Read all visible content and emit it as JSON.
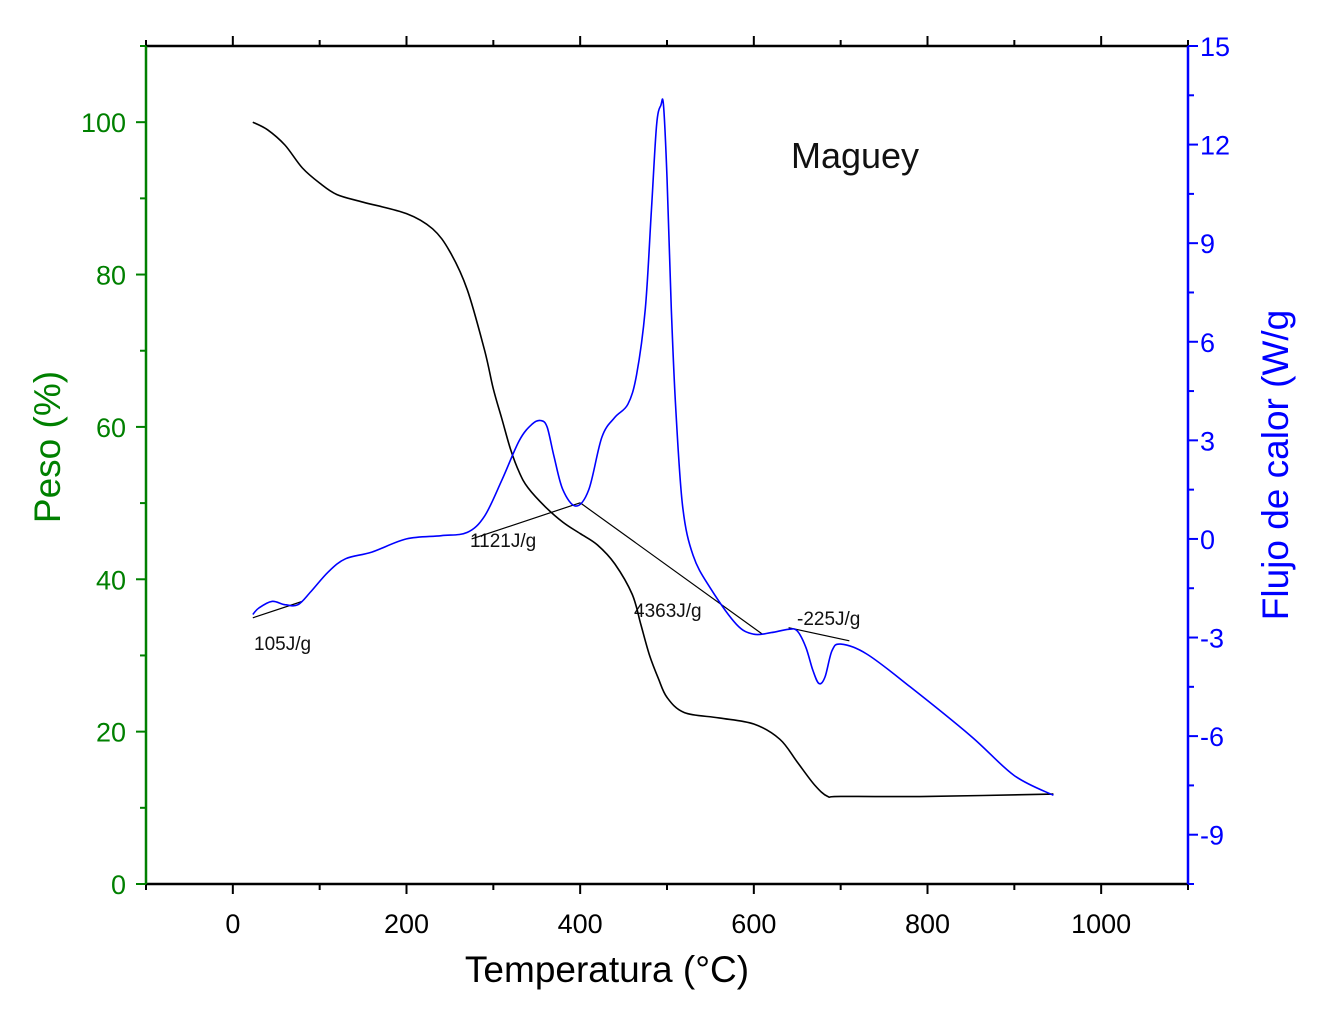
{
  "chart_data": {
    "type": "line",
    "title": "Maguey",
    "xlabel": "Temperatura (°C)",
    "ylabel_left": "Peso (%)",
    "ylabel_right": "Flujo de calor (W/g",
    "xlim": [
      -100,
      1100
    ],
    "ylim_left": [
      0,
      110
    ],
    "ylim_right": [
      -10.5,
      15
    ],
    "x_ticks": [
      0,
      200,
      400,
      600,
      800,
      1000
    ],
    "y_left_ticks": [
      0,
      20,
      40,
      60,
      80,
      100
    ],
    "y_right_ticks": [
      -9,
      -6,
      -3,
      0,
      3,
      6,
      9,
      12,
      15
    ],
    "grid": false,
    "colors": {
      "weight": "#000000",
      "heat_flow": "#0000ff",
      "left_axis": "#008000",
      "right_axis": "#0000ff"
    },
    "series": [
      {
        "key": "weight",
        "axis": "left",
        "x": [
          23,
          40,
          60,
          80,
          100,
          120,
          150,
          200,
          230,
          250,
          270,
          290,
          300,
          310,
          320,
          330,
          340,
          360,
          380,
          400,
          420,
          440,
          460,
          470,
          480,
          490,
          500,
          520,
          560,
          600,
          630,
          650,
          670,
          685,
          700,
          800,
          945
        ],
        "values": [
          100,
          99,
          97,
          94,
          92,
          90.5,
          89.5,
          88,
          86,
          83,
          78,
          70,
          65,
          61,
          57,
          54,
          52,
          49.5,
          47.5,
          46,
          44.5,
          42,
          38,
          34,
          30,
          27,
          24.5,
          22.5,
          21.8,
          21,
          19,
          16,
          13,
          11.5,
          11.5,
          11.5,
          11.8
        ]
      },
      {
        "key": "heat_flow",
        "axis": "right",
        "x": [
          23,
          30,
          45,
          60,
          75,
          90,
          110,
          130,
          160,
          200,
          240,
          270,
          290,
          310,
          330,
          345,
          355,
          362,
          370,
          380,
          395,
          410,
          425,
          440,
          455,
          465,
          475,
          482,
          488,
          493,
          496,
          500,
          505,
          510,
          518,
          530,
          550,
          580,
          600,
          620,
          640,
          650,
          660,
          668,
          675,
          682,
          690,
          700,
          730,
          780,
          850,
          900,
          945
        ],
        "values": [
          -2.3,
          -2.1,
          -1.9,
          -2.0,
          -2.0,
          -1.6,
          -1.0,
          -0.6,
          -0.4,
          0.0,
          0.1,
          0.2,
          0.7,
          1.8,
          3.0,
          3.5,
          3.6,
          3.4,
          2.5,
          1.5,
          1.0,
          1.5,
          3.1,
          3.7,
          4.1,
          5.0,
          7.0,
          10.0,
          12.6,
          13.2,
          13.2,
          11.0,
          7.0,
          4.0,
          1.0,
          -0.5,
          -1.5,
          -2.6,
          -2.9,
          -2.85,
          -2.75,
          -2.8,
          -3.3,
          -4.0,
          -4.4,
          -4.2,
          -3.4,
          -3.2,
          -3.5,
          -4.5,
          -6.0,
          -7.2,
          -7.8
        ]
      }
    ],
    "baselines": [
      {
        "x": [
          23,
          80
        ],
        "values": [
          -2.4,
          -1.9
        ],
        "axis": "right"
      },
      {
        "x": [
          275,
          400
        ],
        "values": [
          0.0,
          1.1
        ],
        "axis": "right"
      },
      {
        "x": [
          400,
          610
        ],
        "values": [
          1.1,
          -2.9
        ],
        "axis": "right"
      },
      {
        "x": [
          640,
          710
        ],
        "values": [
          -2.7,
          -3.1
        ],
        "axis": "right"
      }
    ],
    "annotations": [
      "105J/g",
      "1121J/g",
      "4363J/g",
      "-225J/g"
    ]
  }
}
